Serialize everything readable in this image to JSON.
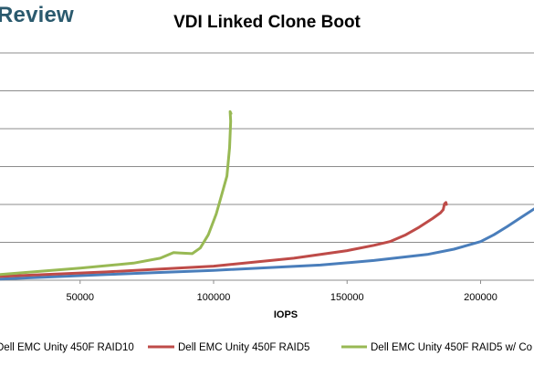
{
  "brand": {
    "text": "Review"
  },
  "chart_data": {
    "type": "line",
    "title": "VDI Linked Clone Boot",
    "xlabel": "IOPS",
    "ylabel": "",
    "xlim": [
      20000,
      220000
    ],
    "x_ticks": [
      "50000",
      "100000",
      "150000",
      "200000"
    ],
    "x_tick_values": [
      50000,
      100000,
      150000,
      200000
    ],
    "ylim": [
      0,
      6
    ],
    "grid": true,
    "legend_position": "bottom",
    "series": [
      {
        "name": "Dell EMC Unity 450F RAID10",
        "color": "#4a7ebb",
        "x": [
          20000,
          60000,
          100000,
          140000,
          160000,
          180000,
          190000,
          200000,
          205000,
          210000,
          215000,
          220000
        ],
        "y": [
          0.03,
          0.15,
          0.26,
          0.4,
          0.52,
          0.68,
          0.82,
          1.02,
          1.2,
          1.42,
          1.65,
          1.88
        ]
      },
      {
        "name": "Dell EMC Unity 450F RAID5",
        "color": "#be4b48",
        "x": [
          20000,
          60000,
          100000,
          130000,
          150000,
          160000,
          166000,
          172000,
          177000,
          182000,
          185000,
          186000,
          186500,
          187000,
          187200
        ],
        "y": [
          0.1,
          0.22,
          0.37,
          0.58,
          0.78,
          0.92,
          1.02,
          1.2,
          1.4,
          1.63,
          1.78,
          1.86,
          2.02,
          2.05,
          2.0
        ]
      },
      {
        "name": "Dell EMC Unity 450F RAID5 w/ Co",
        "color": "#98b954",
        "x": [
          20000,
          50000,
          70000,
          80000,
          85000,
          87000,
          92000,
          95000,
          98000,
          101000,
          103000,
          105000,
          106000,
          106400,
          106200,
          106500
        ],
        "y": [
          0.15,
          0.32,
          0.45,
          0.58,
          0.73,
          0.72,
          0.7,
          0.85,
          1.2,
          1.75,
          2.25,
          2.75,
          3.5,
          4.2,
          4.45,
          4.4
        ]
      }
    ]
  }
}
